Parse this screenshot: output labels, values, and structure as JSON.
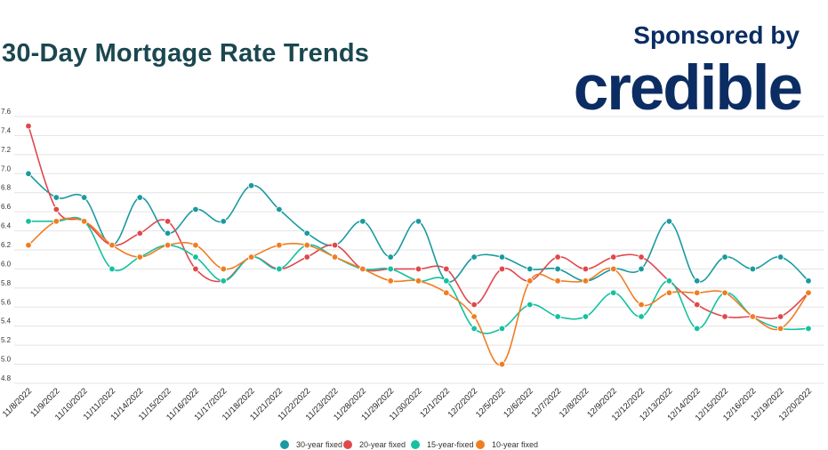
{
  "header": {
    "title": "30-Day Mortgage Rate Trends",
    "sponsor_label": "Sponsored by",
    "brand": "credible"
  },
  "colors": {
    "title": "#1b4750",
    "brand": "#0b2d63",
    "grid": "#e3e3e3"
  },
  "chart_data": {
    "type": "line",
    "title": "30-Day Mortgage Rate Trends",
    "xlabel": "",
    "ylabel": "",
    "ylim": [
      4.8,
      7.6
    ],
    "yticks": [
      "7.6",
      "7.4",
      "7.2",
      "7.0",
      "6.8",
      "6.6",
      "6.4",
      "6.2",
      "6.0",
      "5.8",
      "5.6",
      "5.4",
      "5.2",
      "5.0",
      "4.8"
    ],
    "grid": true,
    "legend_position": "bottom",
    "categories": [
      "11/8/2022",
      "11/9/2022",
      "11/10/2022",
      "11/11/2022",
      "11/14/2022",
      "11/15/2022",
      "11/16/2022",
      "11/17/2022",
      "11/18/2022",
      "11/21/2022",
      "11/22/2022",
      "11/23/2022",
      "11/28/2022",
      "11/29/2022",
      "11/30/2022",
      "12/1/2022",
      "12/2/2022",
      "12/5/2022",
      "12/6/2022",
      "12/7/2022",
      "12/8/2022",
      "12/9/2022",
      "12/12/2022",
      "12/13/2022",
      "12/14/2022",
      "12/15/2022",
      "12/16/2022",
      "12/19/2022",
      "12/20/2022"
    ],
    "series": [
      {
        "name": "30-year fixed",
        "color": "#1a9aa0",
        "values": [
          7.0,
          6.75,
          6.75,
          6.25,
          6.75,
          6.375,
          6.625,
          6.5,
          6.875,
          6.625,
          6.375,
          6.25,
          6.5,
          6.125,
          6.5,
          5.875,
          6.125,
          6.125,
          6.0,
          6.0,
          5.875,
          6.0,
          6.0,
          6.5,
          5.875,
          6.125,
          6.0,
          6.125,
          5.875
        ]
      },
      {
        "name": "20-year fixed",
        "color": "#e0474c",
        "values": [
          7.5,
          6.625,
          6.5,
          6.25,
          6.375,
          6.5,
          6.0,
          5.875,
          6.125,
          6.0,
          6.125,
          6.25,
          6.0,
          6.0,
          6.0,
          6.0,
          5.625,
          6.0,
          5.875,
          6.125,
          6.0,
          6.125,
          6.125,
          5.875,
          5.625,
          5.5,
          5.5,
          5.5,
          5.75
        ]
      },
      {
        "name": "15-year-fixed",
        "color": "#14c1a0",
        "values": [
          6.5,
          6.5,
          6.5,
          6.0,
          6.125,
          6.25,
          6.125,
          5.875,
          6.125,
          6.0,
          6.25,
          6.125,
          6.0,
          6.0,
          5.875,
          5.875,
          5.375,
          5.375,
          5.625,
          5.5,
          5.5,
          5.75,
          5.5,
          5.875,
          5.375,
          5.75,
          5.5,
          5.375,
          5.375
        ]
      },
      {
        "name": "10-year fixed",
        "color": "#f07d22",
        "values": [
          6.25,
          6.5,
          6.5,
          6.25,
          6.125,
          6.25,
          6.25,
          6.0,
          6.125,
          6.25,
          6.25,
          6.125,
          6.0,
          5.875,
          5.875,
          5.75,
          5.5,
          5.0,
          5.875,
          5.875,
          5.875,
          6.0,
          5.625,
          5.75,
          5.75,
          5.75,
          5.5,
          5.375,
          5.75
        ]
      }
    ]
  }
}
